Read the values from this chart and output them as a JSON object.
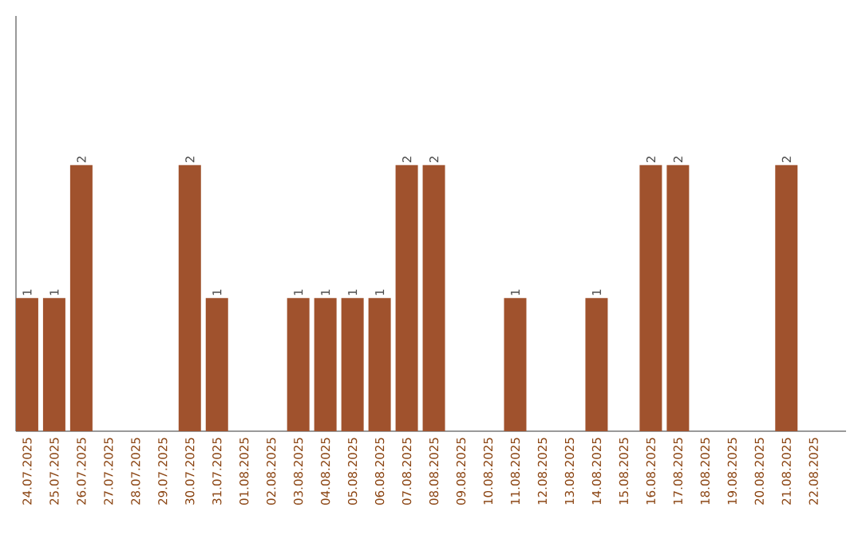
{
  "chart_data": {
    "type": "bar",
    "categories": [
      "24.07.2025",
      "25.07.2025",
      "26.07.2025",
      "27.07.2025",
      "28.07.2025",
      "29.07.2025",
      "30.07.2025",
      "31.07.2025",
      "01.08.2025",
      "02.08.2025",
      "03.08.2025",
      "04.08.2025",
      "05.08.2025",
      "06.08.2025",
      "07.08.2025",
      "08.08.2025",
      "09.08.2025",
      "10.08.2025",
      "11.08.2025",
      "12.08.2025",
      "13.08.2025",
      "14.08.2025",
      "15.08.2025",
      "16.08.2025",
      "17.08.2025",
      "18.08.2025",
      "19.08.2025",
      "20.08.2025",
      "21.08.2025",
      "22.08.2025"
    ],
    "values": [
      1,
      1,
      2,
      0,
      0,
      0,
      2,
      1,
      0,
      0,
      1,
      1,
      1,
      1,
      2,
      2,
      0,
      0,
      1,
      0,
      0,
      1,
      0,
      2,
      2,
      0,
      0,
      0,
      2,
      0
    ],
    "value_labels": [
      "1",
      "1",
      "2",
      null,
      null,
      null,
      "2",
      "1",
      null,
      null,
      "1",
      "1",
      "1",
      "1",
      "2",
      "2",
      null,
      null,
      "1",
      null,
      null,
      "1",
      null,
      "2",
      "2",
      null,
      null,
      null,
      "2",
      null
    ],
    "color": "#a0522d"
  }
}
